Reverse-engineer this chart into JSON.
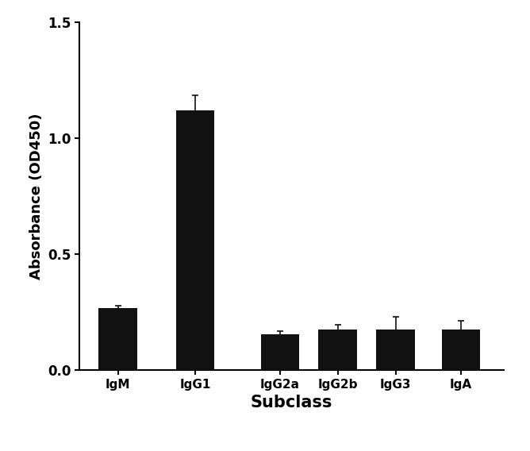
{
  "categories": [
    "IgM",
    "IgG1",
    "IgG2a",
    "IgG2b",
    "IgG3",
    "IgA"
  ],
  "values": [
    0.265,
    1.12,
    0.155,
    0.175,
    0.175,
    0.175
  ],
  "errors": [
    0.012,
    0.065,
    0.012,
    0.018,
    0.055,
    0.038
  ],
  "bar_color": "#111111",
  "error_color": "#111111",
  "ylabel": "Absorbance (OD450)",
  "xlabel": "Subclass",
  "ylim": [
    0.0,
    1.5
  ],
  "yticks": [
    0.0,
    0.5,
    1.0,
    1.5
  ],
  "bar_width": 0.5,
  "background_color": "#ffffff",
  "ylabel_fontsize": 13,
  "xlabel_fontsize": 15,
  "tick_fontsize": 12,
  "xtick_fontsize": 11,
  "capsize": 3,
  "elinewidth": 1.2,
  "capthick": 1.2
}
